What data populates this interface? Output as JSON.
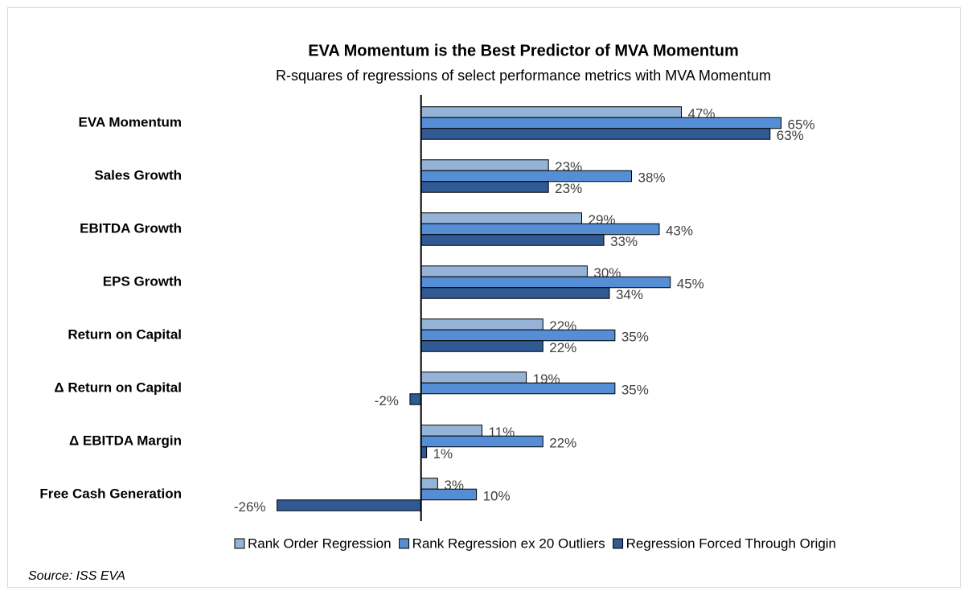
{
  "chart_data": {
    "type": "bar",
    "orientation": "horizontal",
    "title": "EVA Momentum is the Best Predictor of MVA Momentum",
    "subtitle": "R-squares of regressions of select performance metrics with MVA Momentum",
    "source": "Source: ISS EVA",
    "categories": [
      "EVA Momentum",
      "Sales Growth",
      "EBITDA Growth",
      "EPS Growth",
      "Return on Capital",
      "Δ Return on Capital",
      "Δ EBITDA Margin",
      "Free Cash Generation"
    ],
    "series": [
      {
        "name": "Rank Order Regression",
        "color": "#95b3d7",
        "values": [
          47,
          23,
          29,
          30,
          22,
          19,
          11,
          3
        ],
        "value_labels": [
          "47%",
          "23%",
          "29%",
          "30%",
          "22%",
          "19%",
          "11%",
          "3%"
        ]
      },
      {
        "name": "Rank Regression ex 20 Outliers",
        "color": "#558ed5",
        "values": [
          65,
          38,
          43,
          45,
          35,
          35,
          22,
          10
        ],
        "value_labels": [
          "65%",
          "38%",
          "43%",
          "45%",
          "35%",
          "35%",
          "22%",
          "10%"
        ]
      },
      {
        "name": "Regression Forced Through Origin",
        "color": "#2f5a94",
        "values": [
          63,
          23,
          33,
          34,
          22,
          -2,
          1,
          -26
        ],
        "value_labels": [
          "63%",
          "23%",
          "33%",
          "34%",
          "22%",
          "-2%",
          "1%",
          "-26%"
        ]
      }
    ],
    "xlim": [
      -30,
      70
    ],
    "legend": "bottom"
  }
}
